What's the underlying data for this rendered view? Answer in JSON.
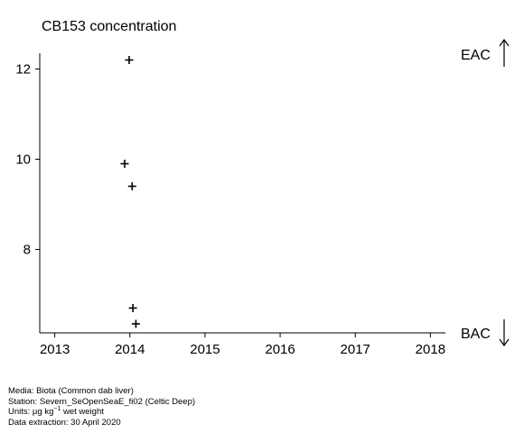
{
  "chart_data": {
    "type": "scatter",
    "title": "CB153 concentration",
    "xlabel": "",
    "ylabel": "",
    "xlim": [
      2012.8,
      2018.2
    ],
    "ylim": [
      6.15,
      12.65
    ],
    "x_ticks": [
      2013,
      2014,
      2015,
      2016,
      2017,
      2018
    ],
    "y_ticks": [
      8,
      10,
      12
    ],
    "marker": "+",
    "grid": false,
    "series": [
      {
        "points": [
          {
            "x": 2013.99,
            "y": 12.2
          },
          {
            "x": 2013.93,
            "y": 9.9
          },
          {
            "x": 2014.03,
            "y": 9.4
          },
          {
            "x": 2014.04,
            "y": 6.7
          },
          {
            "x": 2014.08,
            "y": 6.35
          }
        ]
      }
    ],
    "thresholds": [
      {
        "label": "EAC",
        "direction": "up"
      },
      {
        "label": "BAC",
        "direction": "down"
      }
    ]
  },
  "footer": {
    "media": "Media: Biota (Common dab liver)",
    "station": "Station: Severn_SeOpenSeaE_fi02 (Celtic Deep)",
    "units_prefix": "Units:  µg kg",
    "units_exp": "−1",
    "units_suffix": " wet weight",
    "extraction": "Data extraction: 30 April 2020"
  }
}
